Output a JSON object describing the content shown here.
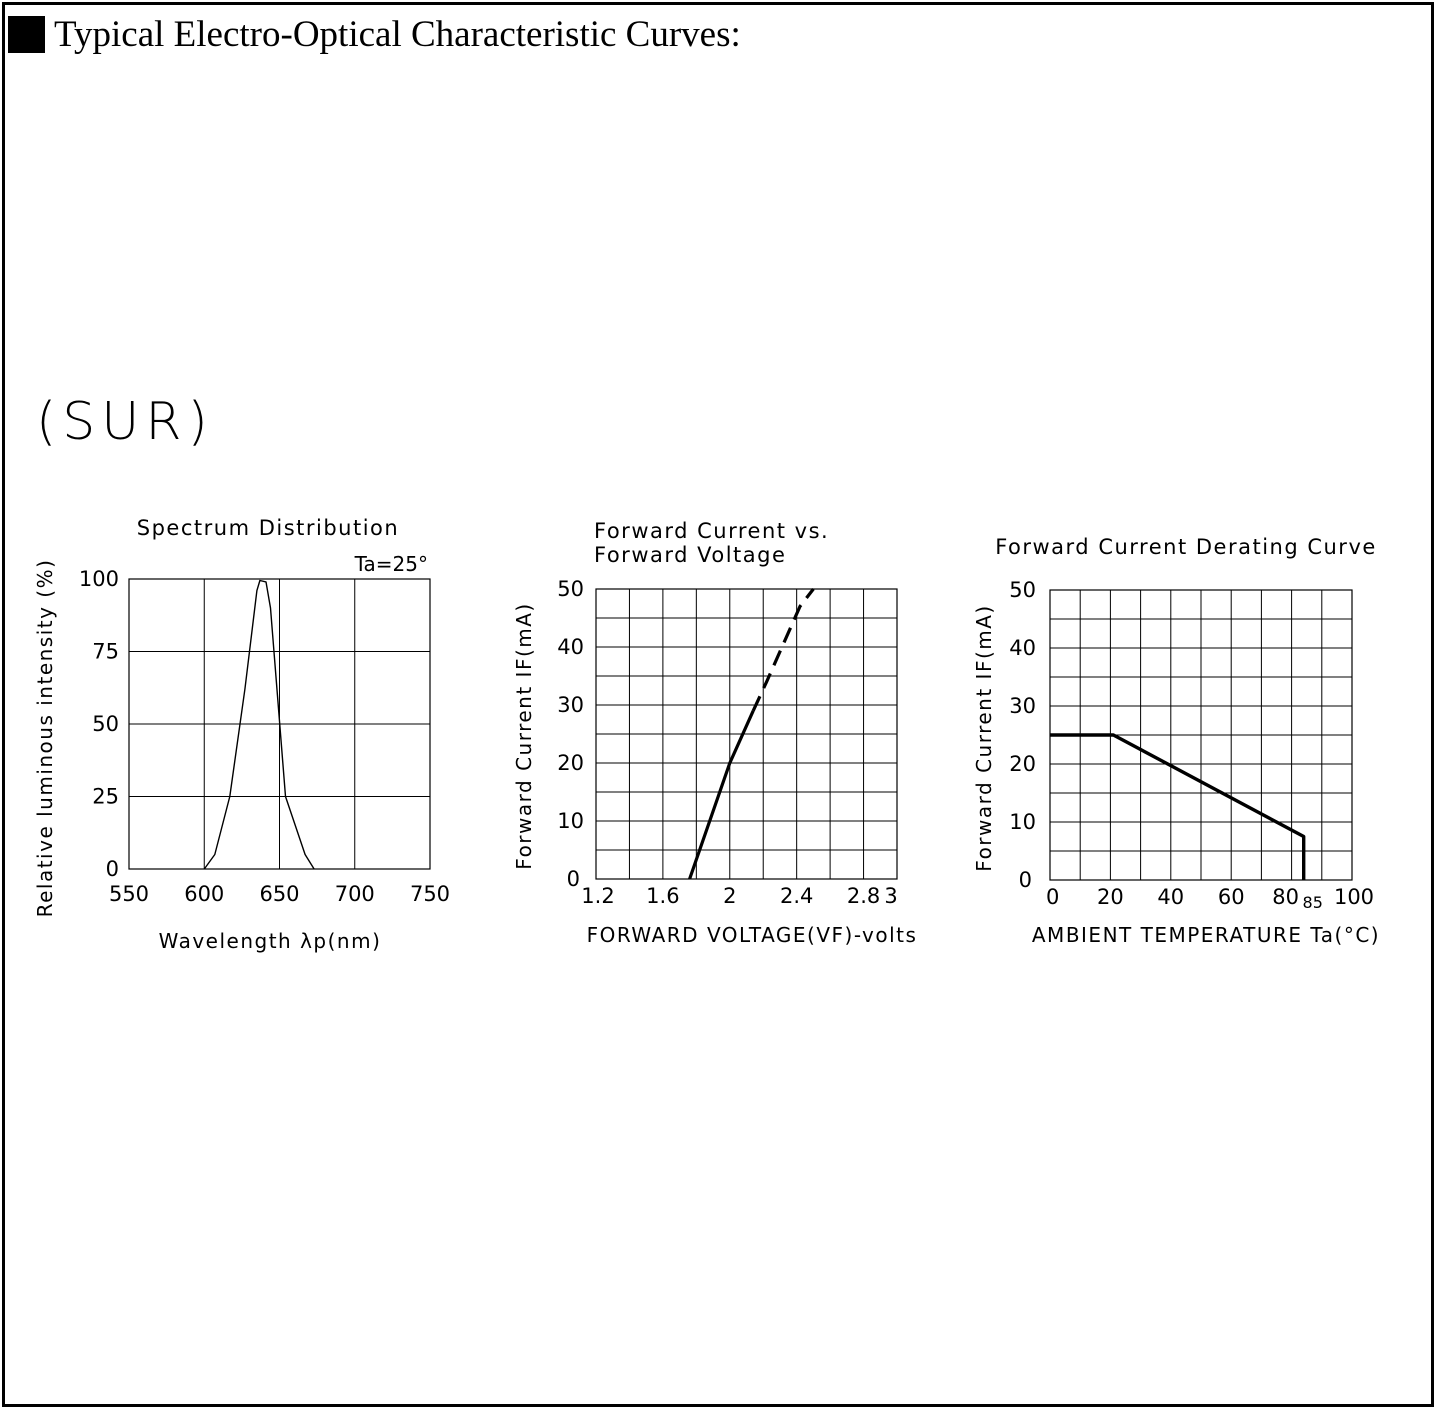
{
  "page": {
    "heading": "Typical Electro-Optical Characteristic Curves:",
    "variant_label": "(SUR)"
  },
  "chart_data": [
    {
      "type": "line",
      "title": "Spectrum Distribution",
      "annotation": "Ta=25°",
      "xlabel": "Wavelength λp(nm)",
      "ylabel": "Relative luminous intensity (%)",
      "xlim": [
        550,
        750
      ],
      "ylim": [
        0,
        100
      ],
      "xticks": [
        550,
        600,
        650,
        700,
        750
      ],
      "yticks": [
        0,
        25,
        50,
        75,
        100
      ],
      "grid": true,
      "series": [
        {
          "x": [
            600,
            607,
            617,
            627,
            635,
            637,
            641,
            644,
            654,
            667,
            673
          ],
          "y": [
            0,
            5,
            25,
            62,
            96,
            99.5,
            99,
            90,
            25,
            5,
            0
          ]
        }
      ]
    },
    {
      "type": "line",
      "title": "Forward Current vs. Forward Voltage",
      "xlabel": "FORWARD VOLTAGE(VF)-volts",
      "ylabel": "Forward Current IF(mA)",
      "xlim": [
        1.2,
        3.0
      ],
      "ylim": [
        0,
        50
      ],
      "xticks": [
        1.2,
        1.6,
        2.0,
        2.4,
        2.8,
        3.0
      ],
      "yticks": [
        0,
        10,
        20,
        30,
        40,
        50
      ],
      "x_minor_step": 0.2,
      "y_minor_step": 5,
      "grid": true,
      "series": [
        {
          "style": "solid",
          "x": [
            1.76,
            2.0,
            2.14
          ],
          "y": [
            0,
            20,
            29
          ]
        },
        {
          "style": "dashed",
          "x": [
            2.14,
            2.22,
            2.42,
            2.5
          ],
          "y": [
            29,
            34,
            47,
            50
          ]
        }
      ]
    },
    {
      "type": "line",
      "title": "Forward Current Derating Curve",
      "xlabel": "AMBIENT TEMPERATURE Ta(°C)",
      "ylabel": "Forward Current IF(mA)",
      "xlim": [
        0,
        100
      ],
      "ylim": [
        0,
        50
      ],
      "xticks": [
        0,
        20,
        40,
        60,
        80,
        85,
        100
      ],
      "yticks": [
        0,
        10,
        20,
        30,
        40,
        50
      ],
      "x_minor_step": 10,
      "y_minor_step": 5,
      "grid": true,
      "series": [
        {
          "x": [
            0,
            21,
            84,
            84
          ],
          "y": [
            25,
            25,
            7.5,
            0
          ]
        }
      ]
    }
  ]
}
